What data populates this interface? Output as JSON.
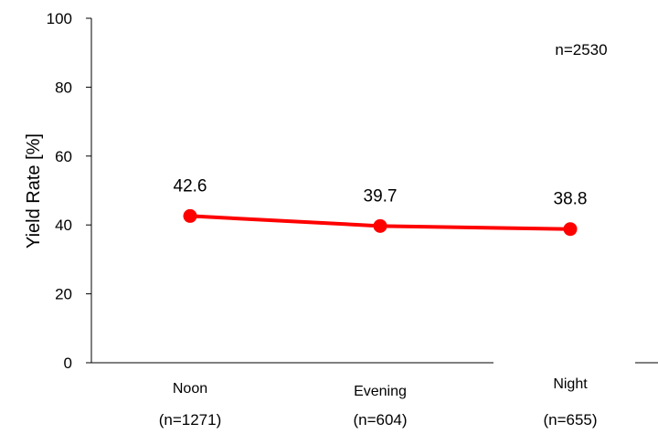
{
  "chart_data": {
    "type": "line",
    "title": "",
    "xlabel": "",
    "ylabel": "Yield Rate [%]",
    "ylim": [
      0,
      100
    ],
    "yticks": [
      "0",
      "20",
      "40",
      "60",
      "80",
      "100"
    ],
    "categories": [
      "Noon",
      "Evening",
      "Night"
    ],
    "category_counts": [
      "(n=1271)",
      "(n=604)",
      "(n=655)"
    ],
    "annotation": "n=2530",
    "series": [
      {
        "values": [
          42.6,
          39.7,
          38.8
        ],
        "color": "#ff0000"
      }
    ],
    "data_labels": [
      "42.6",
      "39.7",
      "38.8"
    ],
    "grid": false,
    "legend": "none"
  }
}
